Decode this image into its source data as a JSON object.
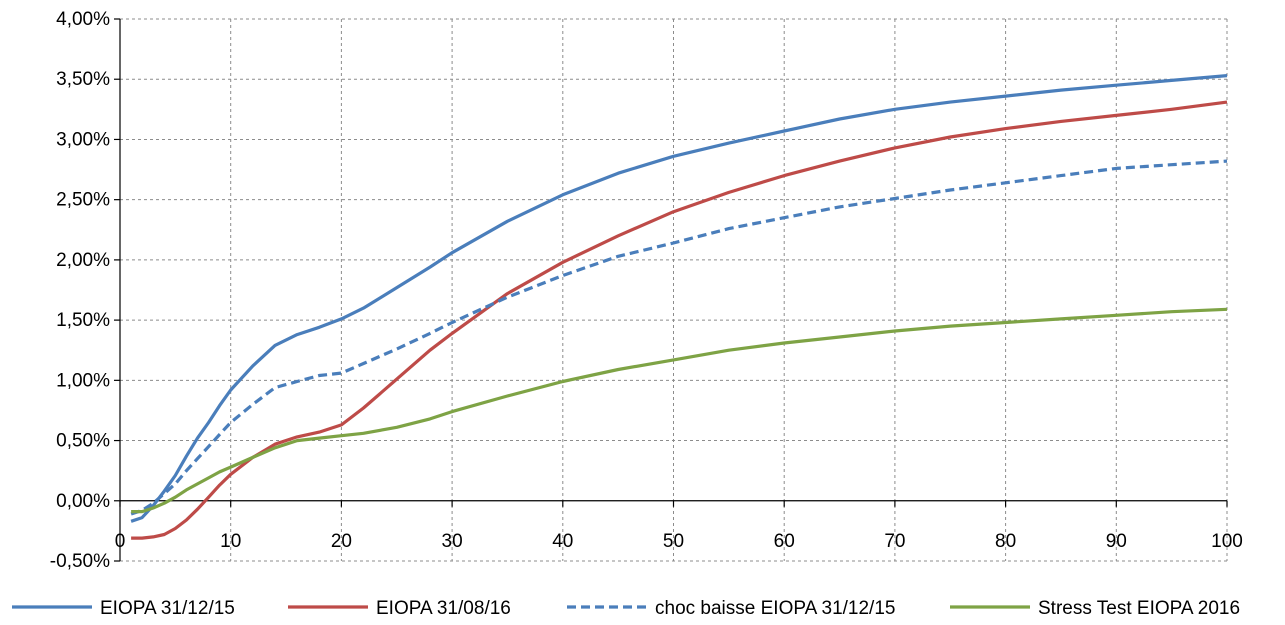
{
  "chart_data": {
    "type": "line",
    "title": "",
    "xlabel": "",
    "ylabel": "",
    "xlim": [
      0,
      100
    ],
    "ylim": [
      -0.5,
      4.0
    ],
    "x_ticks": [
      0,
      10,
      20,
      30,
      40,
      50,
      60,
      70,
      80,
      90,
      100
    ],
    "x_tick_labels": [
      "0",
      "10",
      "20",
      "30",
      "40",
      "50",
      "60",
      "70",
      "80",
      "90",
      "100"
    ],
    "y_ticks": [
      -0.5,
      0,
      0.5,
      1.0,
      1.5,
      2.0,
      2.5,
      3.0,
      3.5,
      4.0
    ],
    "y_tick_labels": [
      "-0,50%",
      "0,00%",
      "0,50%",
      "1,00%",
      "1,50%",
      "2,00%",
      "2,50%",
      "3,00%",
      "3,50%",
      "4,00%"
    ],
    "grid": "dashed",
    "legend_position": "bottom",
    "series": [
      {
        "name": "EIOPA 31/12/15",
        "color": "#4a7ebb",
        "style": "solid",
        "x": [
          1,
          2,
          3,
          4,
          5,
          6,
          7,
          8,
          9,
          10,
          12,
          14,
          16,
          18,
          20,
          22,
          25,
          28,
          30,
          35,
          40,
          45,
          50,
          55,
          60,
          65,
          70,
          75,
          80,
          85,
          90,
          95,
          100
        ],
        "y": [
          -0.17,
          -0.14,
          -0.04,
          0.08,
          0.21,
          0.37,
          0.52,
          0.65,
          0.79,
          0.92,
          1.12,
          1.29,
          1.38,
          1.44,
          1.51,
          1.6,
          1.77,
          1.94,
          2.06,
          2.32,
          2.54,
          2.72,
          2.86,
          2.97,
          3.07,
          3.17,
          3.25,
          3.31,
          3.36,
          3.41,
          3.45,
          3.49,
          3.53
        ]
      },
      {
        "name": "EIOPA 31/08/16",
        "color": "#be4b48",
        "style": "solid",
        "x": [
          1,
          2,
          3,
          4,
          5,
          6,
          7,
          8,
          9,
          10,
          12,
          14,
          16,
          18,
          20,
          22,
          25,
          28,
          30,
          35,
          40,
          45,
          50,
          55,
          60,
          65,
          70,
          75,
          80,
          85,
          90,
          95,
          100
        ],
        "y": [
          -0.31,
          -0.31,
          -0.3,
          -0.28,
          -0.23,
          -0.16,
          -0.07,
          0.03,
          0.13,
          0.22,
          0.36,
          0.47,
          0.53,
          0.57,
          0.63,
          0.77,
          1.01,
          1.25,
          1.39,
          1.72,
          1.98,
          2.2,
          2.4,
          2.56,
          2.7,
          2.82,
          2.93,
          3.02,
          3.09,
          3.15,
          3.2,
          3.25,
          3.31
        ]
      },
      {
        "name": "choc baisse EIOPA 31/12/15",
        "color": "#4a7ebb",
        "style": "dashed",
        "x": [
          1,
          2,
          3,
          4,
          5,
          6,
          7,
          8,
          9,
          10,
          12,
          14,
          16,
          18,
          20,
          22,
          25,
          28,
          30,
          35,
          40,
          45,
          50,
          55,
          60,
          65,
          70,
          75,
          80,
          85,
          90,
          95,
          100
        ],
        "y": [
          -0.11,
          -0.08,
          -0.02,
          0.06,
          0.14,
          0.25,
          0.35,
          0.45,
          0.55,
          0.65,
          0.8,
          0.94,
          0.99,
          1.04,
          1.06,
          1.14,
          1.26,
          1.39,
          1.48,
          1.69,
          1.87,
          2.03,
          2.14,
          2.26,
          2.35,
          2.44,
          2.51,
          2.58,
          2.64,
          2.7,
          2.76,
          2.79,
          2.82
        ]
      },
      {
        "name": "Stress Test EIOPA 2016",
        "color": "#7ea345",
        "style": "solid",
        "x": [
          1,
          2,
          3,
          4,
          5,
          6,
          7,
          8,
          9,
          10,
          12,
          14,
          16,
          18,
          20,
          22,
          25,
          28,
          30,
          35,
          40,
          45,
          50,
          55,
          60,
          65,
          70,
          75,
          80,
          85,
          90,
          95,
          100
        ],
        "y": [
          -0.09,
          -0.09,
          -0.06,
          -0.02,
          0.03,
          0.09,
          0.14,
          0.19,
          0.24,
          0.28,
          0.36,
          0.44,
          0.5,
          0.52,
          0.54,
          0.56,
          0.61,
          0.68,
          0.74,
          0.87,
          0.99,
          1.09,
          1.17,
          1.25,
          1.31,
          1.36,
          1.41,
          1.45,
          1.48,
          1.51,
          1.54,
          1.57,
          1.59
        ]
      }
    ]
  }
}
